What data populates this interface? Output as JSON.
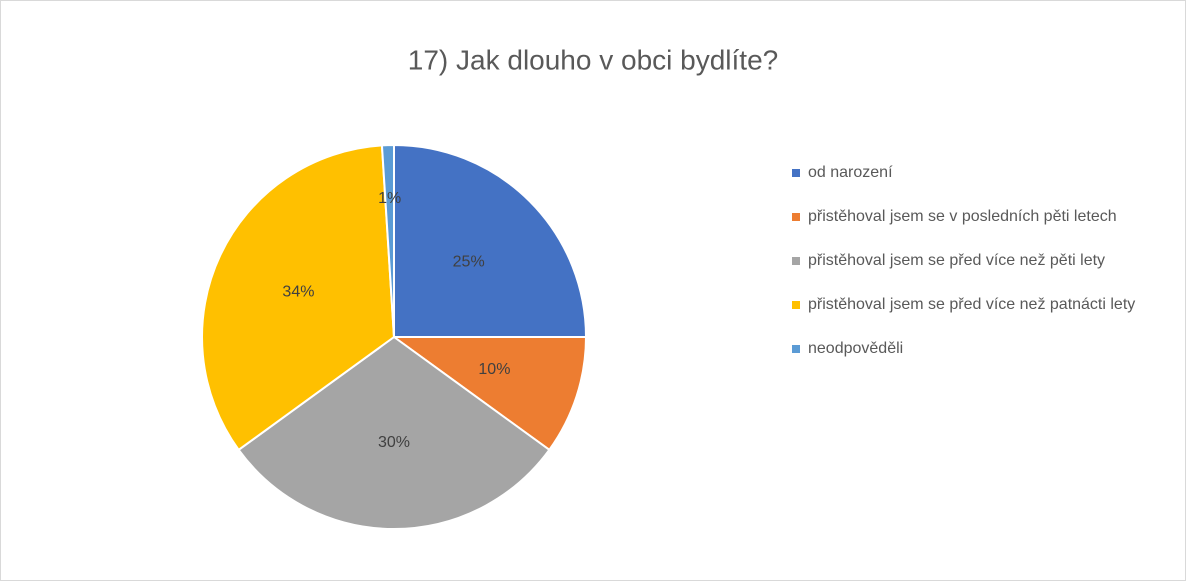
{
  "chart_data": {
    "type": "pie",
    "title": "17) Jak dlouho v obci bydlíte?",
    "categories": [
      "od narození",
      "přistěhoval jsem se v posledních pěti letech",
      "přistěhoval jsem se před více než pěti lety",
      "přistěhoval jsem se před více než patnácti lety",
      "neodpověděli"
    ],
    "values": [
      25,
      10,
      30,
      34,
      1
    ],
    "value_labels": [
      "25%",
      "10%",
      "30%",
      "34%",
      "1%"
    ],
    "colors": [
      "#4472c4",
      "#ed7d31",
      "#a5a5a5",
      "#ffc000",
      "#5b9bd5"
    ],
    "legend": "right"
  }
}
